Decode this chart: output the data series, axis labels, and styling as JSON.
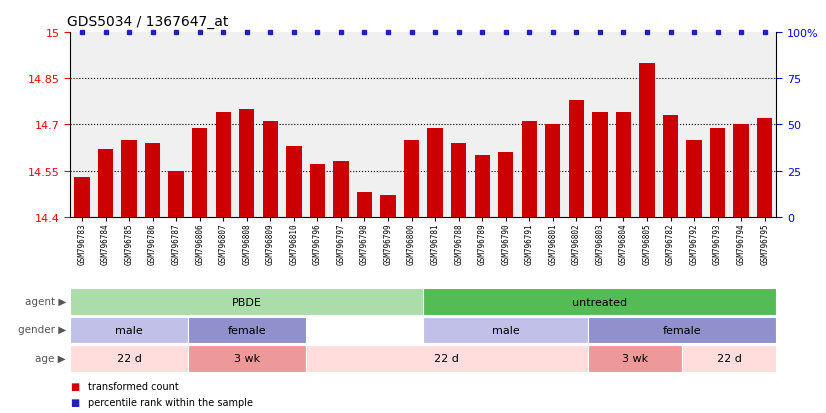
{
  "title": "GDS5034 / 1367647_at",
  "samples": [
    "GSM796783",
    "GSM796784",
    "GSM796785",
    "GSM796786",
    "GSM796787",
    "GSM796806",
    "GSM796807",
    "GSM796808",
    "GSM796809",
    "GSM796810",
    "GSM796796",
    "GSM796797",
    "GSM796798",
    "GSM796799",
    "GSM796800",
    "GSM796781",
    "GSM796788",
    "GSM796789",
    "GSM796790",
    "GSM796791",
    "GSM796801",
    "GSM796802",
    "GSM796803",
    "GSM796804",
    "GSM796805",
    "GSM796782",
    "GSM796792",
    "GSM796793",
    "GSM796794",
    "GSM796795"
  ],
  "values": [
    14.53,
    14.62,
    14.65,
    14.64,
    14.55,
    14.69,
    14.74,
    14.75,
    14.71,
    14.63,
    14.57,
    14.58,
    14.48,
    14.47,
    14.65,
    14.69,
    14.64,
    14.6,
    14.61,
    14.71,
    14.7,
    14.78,
    14.74,
    14.74,
    14.9,
    14.73,
    14.65,
    14.69,
    14.7,
    14.72
  ],
  "bar_color": "#cc0000",
  "percentile_color": "#2222bb",
  "ylim": [
    14.4,
    15.0
  ],
  "yticks": [
    14.4,
    14.55,
    14.7,
    14.85,
    15.0
  ],
  "ytick_labels": [
    "14.4",
    "14.55",
    "14.7",
    "14.85",
    "15"
  ],
  "right_yticks": [
    0,
    25,
    50,
    75,
    100
  ],
  "right_ytick_labels": [
    "0",
    "25",
    "50",
    "75",
    "100%"
  ],
  "hlines": [
    14.55,
    14.7,
    14.85
  ],
  "agent_groups": [
    {
      "label": "PBDE",
      "start": 0,
      "end": 15,
      "color": "#aaddaa"
    },
    {
      "label": "untreated",
      "start": 15,
      "end": 30,
      "color": "#55bb55"
    }
  ],
  "gender_groups": [
    {
      "label": "male",
      "start": 0,
      "end": 5,
      "color": "#c0c0e8"
    },
    {
      "label": "female",
      "start": 5,
      "end": 10,
      "color": "#9090cc"
    },
    {
      "label": "male",
      "start": 15,
      "end": 22,
      "color": "#c0c0e8"
    },
    {
      "label": "female",
      "start": 22,
      "end": 30,
      "color": "#9090cc"
    }
  ],
  "age_groups": [
    {
      "label": "22 d",
      "start": 0,
      "end": 5,
      "color": "#ffdddd"
    },
    {
      "label": "3 wk",
      "start": 5,
      "end": 10,
      "color": "#ee9999"
    },
    {
      "label": "22 d",
      "start": 10,
      "end": 22,
      "color": "#ffdddd"
    },
    {
      "label": "3 wk",
      "start": 22,
      "end": 26,
      "color": "#ee9999"
    },
    {
      "label": "22 d",
      "start": 26,
      "end": 30,
      "color": "#ffdddd"
    }
  ],
  "legend_items": [
    {
      "label": "transformed count",
      "color": "#cc0000"
    },
    {
      "label": "percentile rank within the sample",
      "color": "#2222bb"
    }
  ],
  "fig_bg": "#ffffff",
  "plot_bg": "#f0f0f0"
}
